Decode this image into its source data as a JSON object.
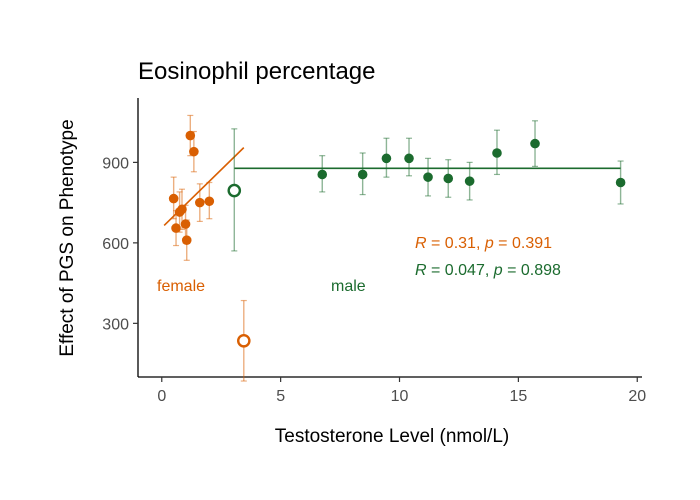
{
  "chart_data": {
    "type": "scatter",
    "title": "Eosinophil percentage",
    "xlabel": "Testosterone Level (nmol/L)",
    "ylabel": "Effect of PGS on Phenotype",
    "xlim": [
      -1,
      20.2
    ],
    "ylim": [
      100,
      1140
    ],
    "x_ticks": [
      0,
      5,
      10,
      15,
      20
    ],
    "y_ticks": [
      300,
      600,
      900
    ],
    "grid": false,
    "colors": {
      "female": "#d95f02",
      "male": "#1b6b2e"
    },
    "series": [
      {
        "name": "female",
        "label": "female",
        "points": [
          {
            "x": 0.5,
            "y": 765,
            "lo": 690,
            "hi": 845
          },
          {
            "x": 0.6,
            "y": 655,
            "lo": 590,
            "hi": 720
          },
          {
            "x": 0.75,
            "y": 715,
            "lo": 640,
            "hi": 790
          },
          {
            "x": 0.85,
            "y": 725,
            "lo": 650,
            "hi": 800
          },
          {
            "x": 1.0,
            "y": 670,
            "lo": 600,
            "hi": 740
          },
          {
            "x": 1.05,
            "y": 610,
            "lo": 535,
            "hi": 685
          },
          {
            "x": 1.2,
            "y": 1000,
            "lo": 925,
            "hi": 1075
          },
          {
            "x": 1.35,
            "y": 940,
            "lo": 865,
            "hi": 1015
          },
          {
            "x": 1.6,
            "y": 750,
            "lo": 680,
            "hi": 820
          },
          {
            "x": 2.0,
            "y": 755,
            "lo": 690,
            "hi": 825
          }
        ],
        "summary_point": {
          "x": 3.45,
          "y": 235,
          "lo": 85,
          "hi": 385
        },
        "fit": {
          "x1": 0.1,
          "y1": 665,
          "x2": 3.45,
          "y2": 955
        },
        "stat": {
          "R": "0.31",
          "p": "0.391"
        }
      },
      {
        "name": "male",
        "label": "male",
        "points": [
          {
            "x": 6.75,
            "y": 855,
            "lo": 790,
            "hi": 925
          },
          {
            "x": 8.45,
            "y": 855,
            "lo": 780,
            "hi": 935
          },
          {
            "x": 9.45,
            "y": 915,
            "lo": 845,
            "hi": 990
          },
          {
            "x": 10.4,
            "y": 915,
            "lo": 850,
            "hi": 990
          },
          {
            "x": 11.2,
            "y": 845,
            "lo": 775,
            "hi": 915
          },
          {
            "x": 12.05,
            "y": 840,
            "lo": 770,
            "hi": 910
          },
          {
            "x": 12.95,
            "y": 830,
            "lo": 760,
            "hi": 900
          },
          {
            "x": 14.1,
            "y": 935,
            "lo": 855,
            "hi": 1020
          },
          {
            "x": 15.7,
            "y": 970,
            "lo": 885,
            "hi": 1055
          },
          {
            "x": 19.3,
            "y": 825,
            "lo": 745,
            "hi": 905
          }
        ],
        "summary_point": {
          "x": 3.05,
          "y": 795,
          "lo": 570,
          "hi": 1025
        },
        "fit": {
          "x1": 3.05,
          "y1": 878,
          "x2": 19.3,
          "y2": 878
        },
        "stat": {
          "R": "0.047",
          "p": "0.898"
        }
      }
    ]
  }
}
